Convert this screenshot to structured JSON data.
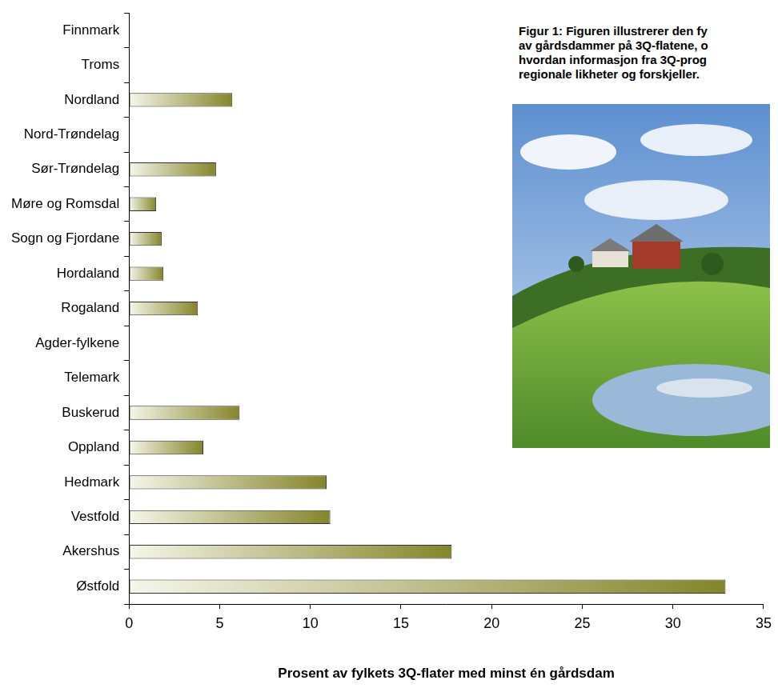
{
  "chart_data": {
    "type": "bar",
    "orientation": "horizontal",
    "categories": [
      "Finnmark",
      "Troms",
      "Nordland",
      "Nord-Trøndelag",
      "Sør-Trøndelag",
      "Møre og Romsdal",
      "Sogn og Fjordane",
      "Hordaland",
      "Rogaland",
      "Agder-fylkene",
      "Telemark",
      "Buskerud",
      "Oppland",
      "Hedmark",
      "Vestfold",
      "Akershus",
      "Østfold"
    ],
    "values": [
      0,
      0,
      5.7,
      0,
      4.8,
      1.5,
      1.8,
      1.9,
      3.8,
      0,
      0,
      6.1,
      4.1,
      10.9,
      11.1,
      17.8,
      32.9
    ],
    "color": "#85852a",
    "xlabel": "Prosent av fylkets 3Q-flater med minst én gårdsdam",
    "xlim": [
      0,
      35
    ],
    "xticks": [
      0,
      5,
      10,
      15,
      20,
      25,
      30,
      35
    ],
    "grid": false,
    "annotation": [
      "Figur 1: Figuren illustrerer den fy",
      "av gårdsdammer på 3Q-flatene, o",
      "hvordan informasjon fra 3Q-prog",
      "regionale likheter og forskjeller."
    ]
  }
}
